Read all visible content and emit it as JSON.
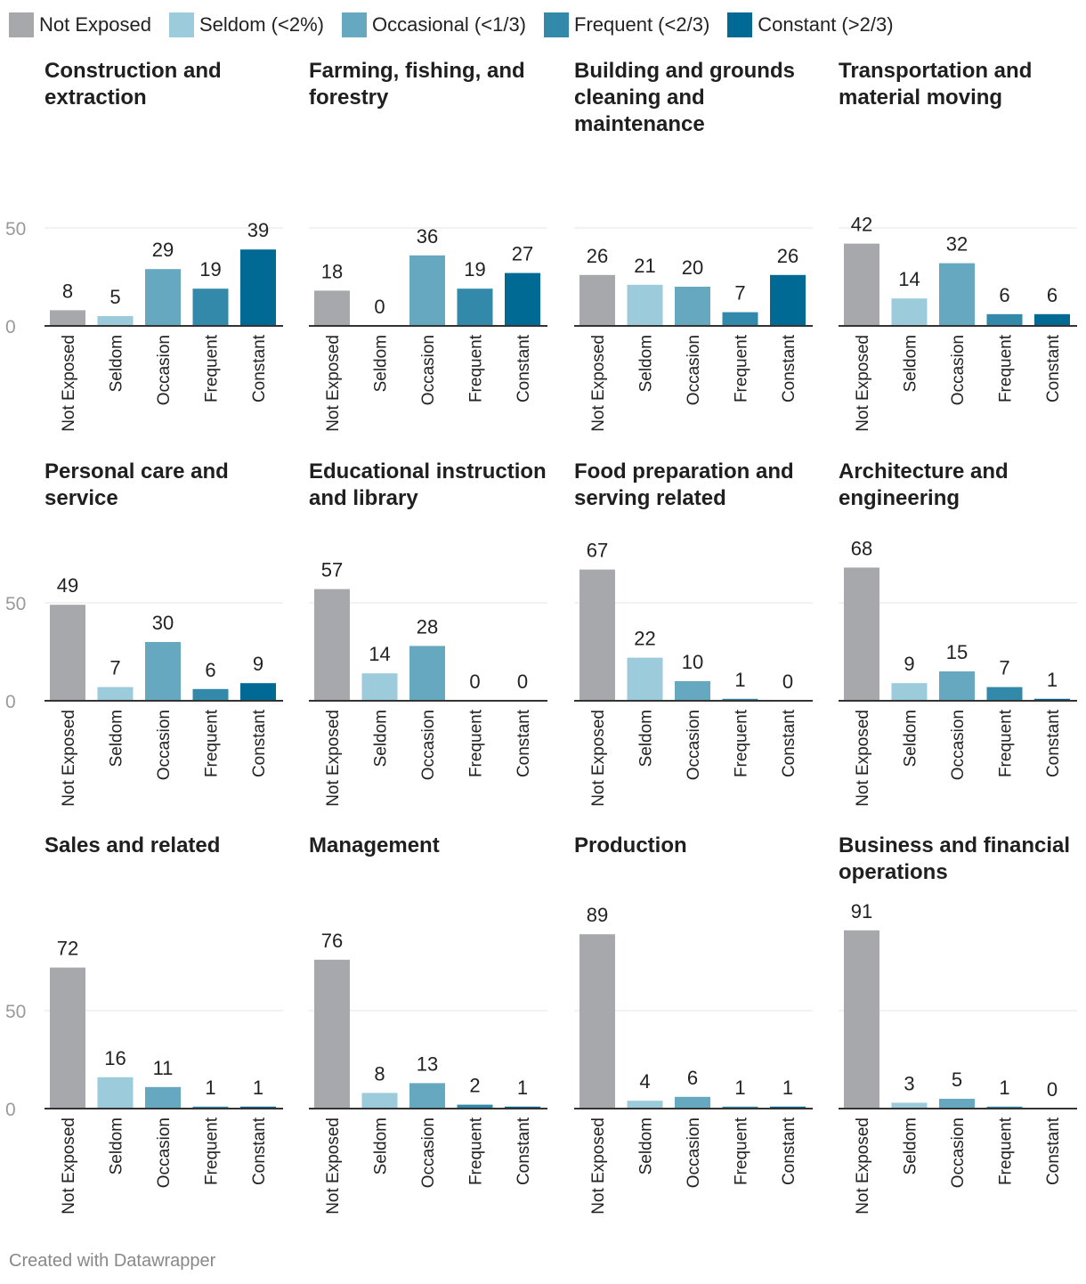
{
  "legend": [
    {
      "label": "Not Exposed",
      "color": "#a7a8ac"
    },
    {
      "label": "Seldom (<2%)",
      "color": "#9ccbdb"
    },
    {
      "label": "Occasional (<1/3)",
      "color": "#66a8c0"
    },
    {
      "label": "Frequent (<2/3)",
      "color": "#3389aa"
    },
    {
      "label": "Constant (>2/3)",
      "color": "#006994"
    }
  ],
  "footer": "Created with Datawrapper",
  "chart_data": {
    "type": "bar",
    "layout": "small-multiples",
    "categories": [
      "Not Exposed",
      "Seldom",
      "Occasion",
      "Frequent",
      "Constant"
    ],
    "y_ticks": [
      0,
      50
    ],
    "grid": true,
    "panels": [
      {
        "title": "Construction and extraction",
        "values": [
          8,
          5,
          29,
          19,
          39
        ]
      },
      {
        "title": "Farming, fishing, and forestry",
        "values": [
          18,
          0,
          36,
          19,
          27
        ]
      },
      {
        "title": "Building and grounds cleaning and maintenance",
        "values": [
          26,
          21,
          20,
          7,
          26
        ]
      },
      {
        "title": "Transportation and material moving",
        "values": [
          42,
          14,
          32,
          6,
          6
        ]
      },
      {
        "title": "Personal care and service",
        "values": [
          49,
          7,
          30,
          6,
          9
        ]
      },
      {
        "title": "Educational instruction and library",
        "values": [
          57,
          14,
          28,
          0,
          0
        ]
      },
      {
        "title": "Food preparation and serving related",
        "values": [
          67,
          22,
          10,
          1,
          0
        ]
      },
      {
        "title": "Architecture and engineering",
        "values": [
          68,
          9,
          15,
          7,
          1
        ]
      },
      {
        "title": "Sales and related",
        "values": [
          72,
          16,
          11,
          1,
          1
        ]
      },
      {
        "title": "Management",
        "values": [
          76,
          8,
          13,
          2,
          1
        ]
      },
      {
        "title": "Production",
        "values": [
          89,
          4,
          6,
          1,
          1
        ]
      },
      {
        "title": "Business and financial operations",
        "values": [
          91,
          3,
          5,
          1,
          0
        ]
      }
    ]
  }
}
